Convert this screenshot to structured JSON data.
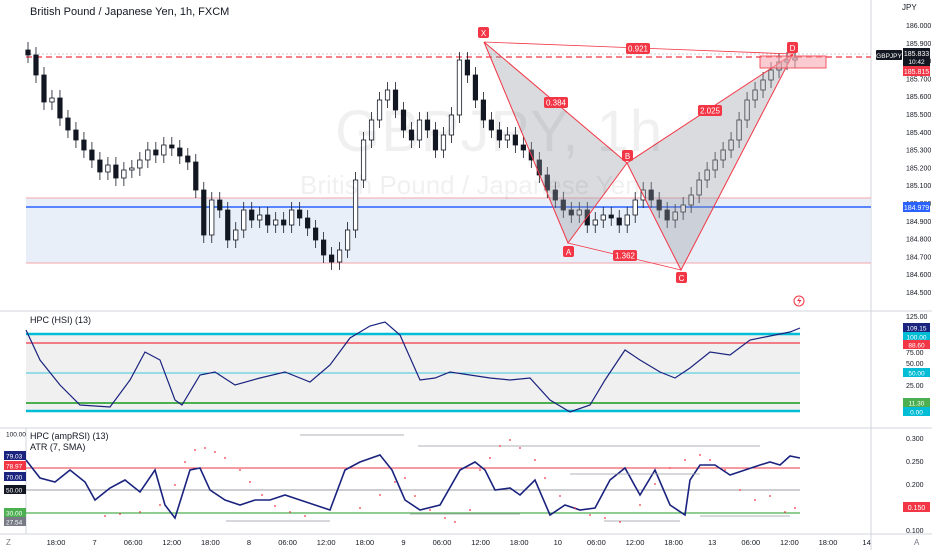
{
  "chart": {
    "title": "British Pound / Japanese Yen, 1h, FXCM",
    "watermark_ticker": "GBPJPY, 1h",
    "watermark_name": "British Pound / Japanese Yen",
    "currency": "JPY",
    "symbol_tag": "GBPJPY",
    "last_price": "185.833",
    "countdown": "10:42",
    "bid_tag": "185.815",
    "support_tag": "184.979",
    "price_axis": [
      "186.000",
      "185.900",
      "185.800",
      "185.700",
      "185.600",
      "185.500",
      "185.400",
      "185.300",
      "185.200",
      "185.100",
      "185.000",
      "184.900",
      "184.800",
      "184.700",
      "184.600",
      "184.500"
    ],
    "colors": {
      "up": "#131722",
      "down": "#131722",
      "pattern_line": "#f23645",
      "support_line": "#2962ff",
      "resistance_dash": "#f23645"
    }
  },
  "pattern": {
    "points": [
      {
        "label": "X",
        "price": 185.92
      },
      {
        "label": "A",
        "price": 184.77
      },
      {
        "label": "B",
        "price": 185.22
      },
      {
        "label": "C",
        "price": 184.66
      },
      {
        "label": "D",
        "price": 185.85
      }
    ],
    "ratios": {
      "xb": "0.384",
      "ac": "1.362",
      "bd": "2.025",
      "xd": "0.921"
    }
  },
  "hsi": {
    "label": "HPC (HSI) (13)",
    "axis": [
      "125.00",
      "100.00",
      "75.00",
      "50.00",
      "25.00",
      "0.00"
    ],
    "tags": [
      {
        "text": "109.15",
        "bg": "#1a237e",
        "fg": "#ffffff"
      },
      {
        "text": "100.00",
        "bg": "#00bcd4",
        "fg": "#ffffff"
      },
      {
        "text": "88.60",
        "bg": "#f23645",
        "fg": "#ffffff"
      },
      {
        "text": "50.00",
        "bg": "#00bcd4",
        "fg": "#ffffff"
      },
      {
        "text": "11.30",
        "bg": "#4caf50",
        "fg": "#ffffff"
      },
      {
        "text": "0.00",
        "bg": "#00bcd4",
        "fg": "#ffffff"
      }
    ]
  },
  "amprsi": {
    "label1": "HPC (ampRSI) (13)",
    "label2": "ATR (7, SMA)",
    "left_axis": [
      "100.00",
      "79.03",
      "78.97",
      "70.00",
      "50.00",
      "30.00",
      "27.54"
    ],
    "right_axis": [
      "0.300",
      "0.250",
      "0.200",
      "0.150",
      "0.100"
    ],
    "atr_tag": "0.150"
  },
  "time_axis": [
    "18:00",
    "7",
    "06:00",
    "12:00",
    "18:00",
    "8",
    "06:00",
    "12:00",
    "18:00",
    "9",
    "06:00",
    "12:00",
    "18:00",
    "10",
    "06:00",
    "12:00",
    "18:00",
    "13",
    "06:00",
    "12:00",
    "18:00",
    "14"
  ],
  "bottom_corners": {
    "left": "Z",
    "right": "A"
  },
  "alert_icon": "lightning-icon"
}
